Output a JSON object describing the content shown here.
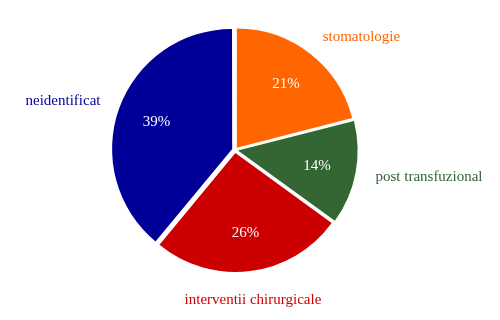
{
  "chart_data": {
    "type": "pie",
    "categories": [
      "stomatologie",
      "post transfuzional",
      "interventii chirurgicale",
      "neidentificat"
    ],
    "values": [
      21,
      14,
      26,
      39
    ],
    "value_labels": [
      "21%",
      "14%",
      "26%",
      "39%"
    ],
    "colors": [
      "#ff6600",
      "#336633",
      "#cc0000",
      "#000099"
    ],
    "data_labels": true
  }
}
